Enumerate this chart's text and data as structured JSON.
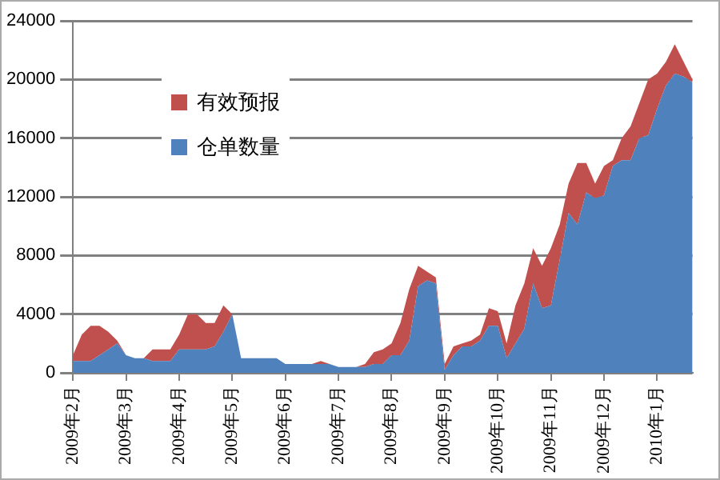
{
  "chart_data": {
    "type": "area",
    "stacked": true,
    "categories": [
      "2009年2月",
      null,
      null,
      null,
      null,
      null,
      "2009年3月",
      null,
      null,
      null,
      null,
      null,
      "2009年4月",
      null,
      null,
      null,
      null,
      null,
      "2009年5月",
      null,
      null,
      null,
      null,
      null,
      "2009年6月",
      null,
      null,
      null,
      null,
      null,
      "2009年7月",
      null,
      null,
      null,
      null,
      null,
      "2009年8月",
      null,
      null,
      null,
      null,
      null,
      "2009年9月",
      null,
      null,
      null,
      null,
      null,
      "2009年10月",
      null,
      null,
      null,
      null,
      null,
      "2009年11月",
      null,
      null,
      null,
      null,
      null,
      "2009年12月",
      null,
      null,
      null,
      null,
      null,
      "2010年1月",
      null,
      null,
      null,
      null
    ],
    "series": [
      {
        "name": "仓单数量",
        "color": "#4f81bd",
        "values": [
          800,
          800,
          800,
          1200,
          1600,
          2000,
          1200,
          1000,
          1000,
          800,
          800,
          800,
          1600,
          1600,
          1600,
          1600,
          1800,
          2800,
          4000,
          1000,
          1000,
          1000,
          1000,
          1000,
          600,
          600,
          600,
          600,
          600,
          600,
          400,
          400,
          400,
          400,
          600,
          600,
          1200,
          1200,
          2200,
          5900,
          6300,
          6100,
          200,
          1200,
          1800,
          1800,
          2200,
          3200,
          3200,
          1000,
          2000,
          3000,
          6100,
          4400,
          4600,
          7700,
          10900,
          10100,
          12300,
          11900,
          12100,
          14100,
          14500,
          14500,
          16000,
          16200,
          18000,
          19600,
          20400,
          20200,
          19800
        ]
      },
      {
        "name": "有效预报",
        "color": "#c0504d",
        "values": [
          400,
          1800,
          2400,
          2000,
          1200,
          200,
          0,
          0,
          0,
          800,
          800,
          800,
          1000,
          2400,
          2400,
          1800,
          1600,
          1800,
          0,
          0,
          0,
          0,
          0,
          0,
          0,
          0,
          0,
          0,
          200,
          0,
          0,
          0,
          0,
          200,
          800,
          1000,
          800,
          2200,
          3500,
          1400,
          600,
          400,
          400,
          600,
          200,
          400,
          400,
          1200,
          1000,
          1000,
          2600,
          3100,
          2400,
          2900,
          3900,
          2400,
          2000,
          4200,
          2000,
          1000,
          2000,
          400,
          1500,
          2300,
          2400,
          3800,
          2400,
          1600,
          2000,
          1000,
          200
        ]
      }
    ],
    "ylim": [
      0,
      24000
    ],
    "yticks": [
      0,
      4000,
      8000,
      12000,
      16000,
      20000,
      24000
    ],
    "grid": "y",
    "legend": "top left"
  }
}
